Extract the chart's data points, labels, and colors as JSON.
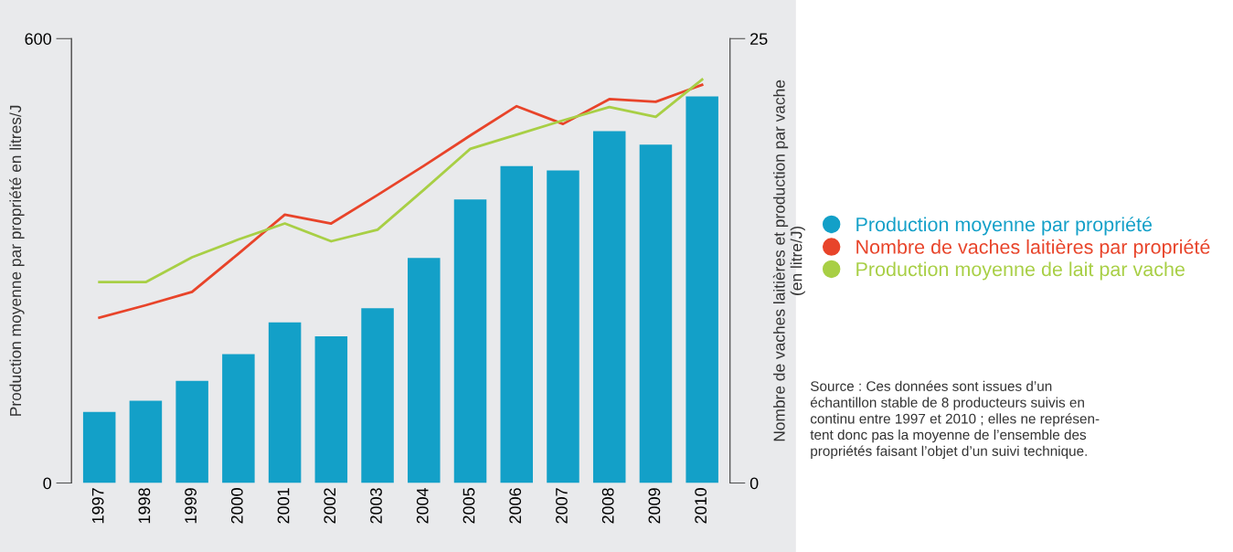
{
  "chart_data": {
    "type": "bar",
    "categories": [
      "1997",
      "1998",
      "1999",
      "2000",
      "2001",
      "2002",
      "2003",
      "2004",
      "2005",
      "2006",
      "2007",
      "2008",
      "2009",
      "2010"
    ],
    "series": [
      {
        "name": "Production moyenne par propriété",
        "color": "#13a0c8",
        "values": [
          96,
          111,
          138,
          174,
          217,
          198,
          236,
          304,
          383,
          428,
          422,
          475,
          457,
          522
        ]
      },
      {
        "name": "Nombre de vaches laitières par propriété",
        "color": "#e8442a",
        "type": "line",
        "axis": "y2",
        "values": [
          9.3,
          10.0,
          10.75,
          12.9,
          15.1,
          14.6,
          16.2,
          17.85,
          19.55,
          21.2,
          20.2,
          21.6,
          21.45,
          22.4
        ]
      },
      {
        "name": "Production moyenne de lait par vache",
        "color": "#a8cf45",
        "type": "line",
        "axis": "y2",
        "values": [
          11.3,
          11.3,
          12.7,
          13.7,
          14.6,
          13.6,
          14.25,
          16.5,
          18.8,
          19.6,
          20.4,
          21.15,
          20.6,
          22.7
        ]
      }
    ],
    "ylabel": "Production moyenne par propriété en litres/J",
    "y2label": "Nombre de vaches laitières et production par vache\n(en litre/J)",
    "ylim": [
      0,
      600
    ],
    "yticks": [
      0,
      600
    ],
    "y2lim": [
      0,
      25
    ],
    "y2ticks": [
      0,
      25
    ],
    "grid": false,
    "legend": "right",
    "marker": "none",
    "line_style": "solid",
    "annotations": [
      "Source : Ces données sont issues d’un\néchantillon stable de 8 producteurs suivis en\ncontinu entre 1997 et 2010 ; elles ne représen-\ntent donc pas la moyenne de l’ensemble des\npropriétés faisant l’objet d’un suivi technique."
    ]
  }
}
